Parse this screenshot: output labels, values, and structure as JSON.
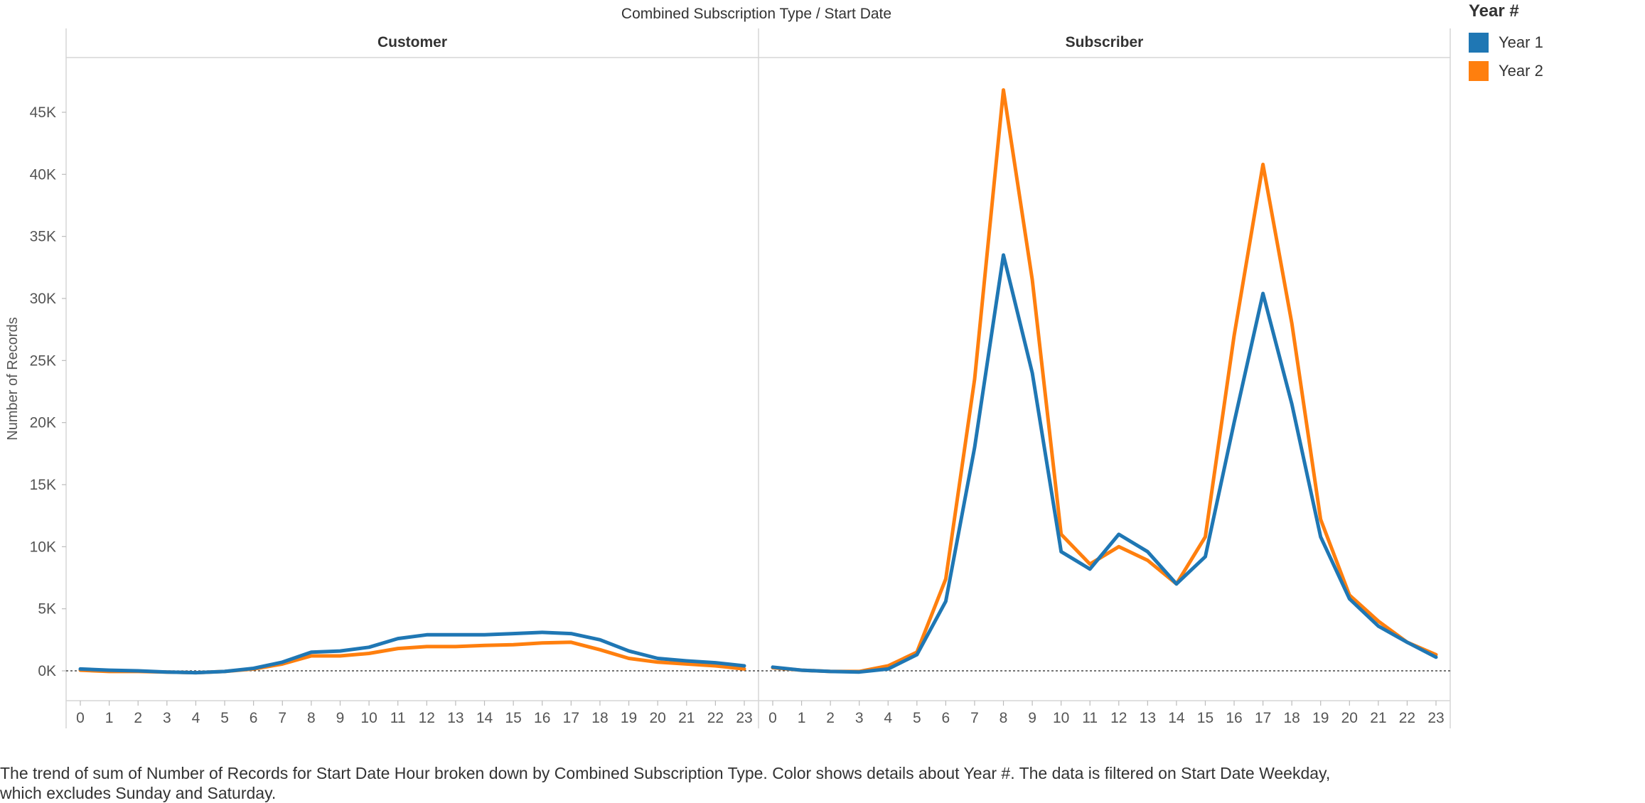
{
  "chart_data": {
    "type": "line",
    "title": "Combined Subscription Type  /  Start Date",
    "ylabel": "Number of Records",
    "ylim": [
      -2500,
      50000
    ],
    "y_ticks": [
      0,
      5000,
      10000,
      15000,
      20000,
      25000,
      30000,
      35000,
      40000,
      45000
    ],
    "y_tick_labels": [
      "0K",
      "5K",
      "10K",
      "15K",
      "20K",
      "25K",
      "30K",
      "35K",
      "40K",
      "45K"
    ],
    "x": [
      "0",
      "1",
      "2",
      "3",
      "4",
      "5",
      "6",
      "7",
      "8",
      "9",
      "10",
      "11",
      "12",
      "13",
      "14",
      "15",
      "16",
      "17",
      "18",
      "19",
      "20",
      "21",
      "22",
      "23"
    ],
    "legend_title": "Year #",
    "legend_position": "top-right",
    "panels": [
      {
        "name": "Customer",
        "series": [
          {
            "name": "Year 1",
            "color": "#1f77b4",
            "values": [
              150,
              50,
              0,
              -100,
              -150,
              -50,
              200,
              700,
              1500,
              1600,
              1900,
              2600,
              2900,
              2900,
              2900,
              3000,
              3100,
              3000,
              2500,
              1600,
              1000,
              800,
              650,
              400
            ]
          },
          {
            "name": "Year 2",
            "color": "#ff7f0e",
            "values": [
              50,
              -50,
              -50,
              -100,
              -150,
              -50,
              150,
              550,
              1200,
              1200,
              1400,
              1800,
              1950,
              1950,
              2050,
              2100,
              2250,
              2300,
              1700,
              1000,
              700,
              550,
              400,
              150
            ]
          }
        ]
      },
      {
        "name": "Subscriber",
        "series": [
          {
            "name": "Year 1",
            "color": "#1f77b4",
            "values": [
              300,
              50,
              -50,
              -100,
              150,
              1300,
              5600,
              18000,
              33500,
              24000,
              9600,
              8200,
              11000,
              9600,
              7000,
              9200,
              20000,
              30400,
              21500,
              10800,
              5800,
              3600,
              2300,
              1100
            ]
          },
          {
            "name": "Year 2",
            "color": "#ff7f0e",
            "values": [
              250,
              50,
              -50,
              -50,
              400,
              1500,
              7400,
              23500,
              46800,
              31500,
              11000,
              8600,
              10000,
              8900,
              7000,
              10800,
              27000,
              40800,
              28000,
              12200,
              6100,
              4000,
              2300,
              1300
            ]
          }
        ]
      }
    ]
  },
  "caption": {
    "line1": "The trend of sum of Number of Records for Start Date Hour broken down by Combined Subscription Type.  Color shows details about Year #. The data is filtered on Start Date Weekday,",
    "line2": "which excludes Sunday and Saturday."
  }
}
